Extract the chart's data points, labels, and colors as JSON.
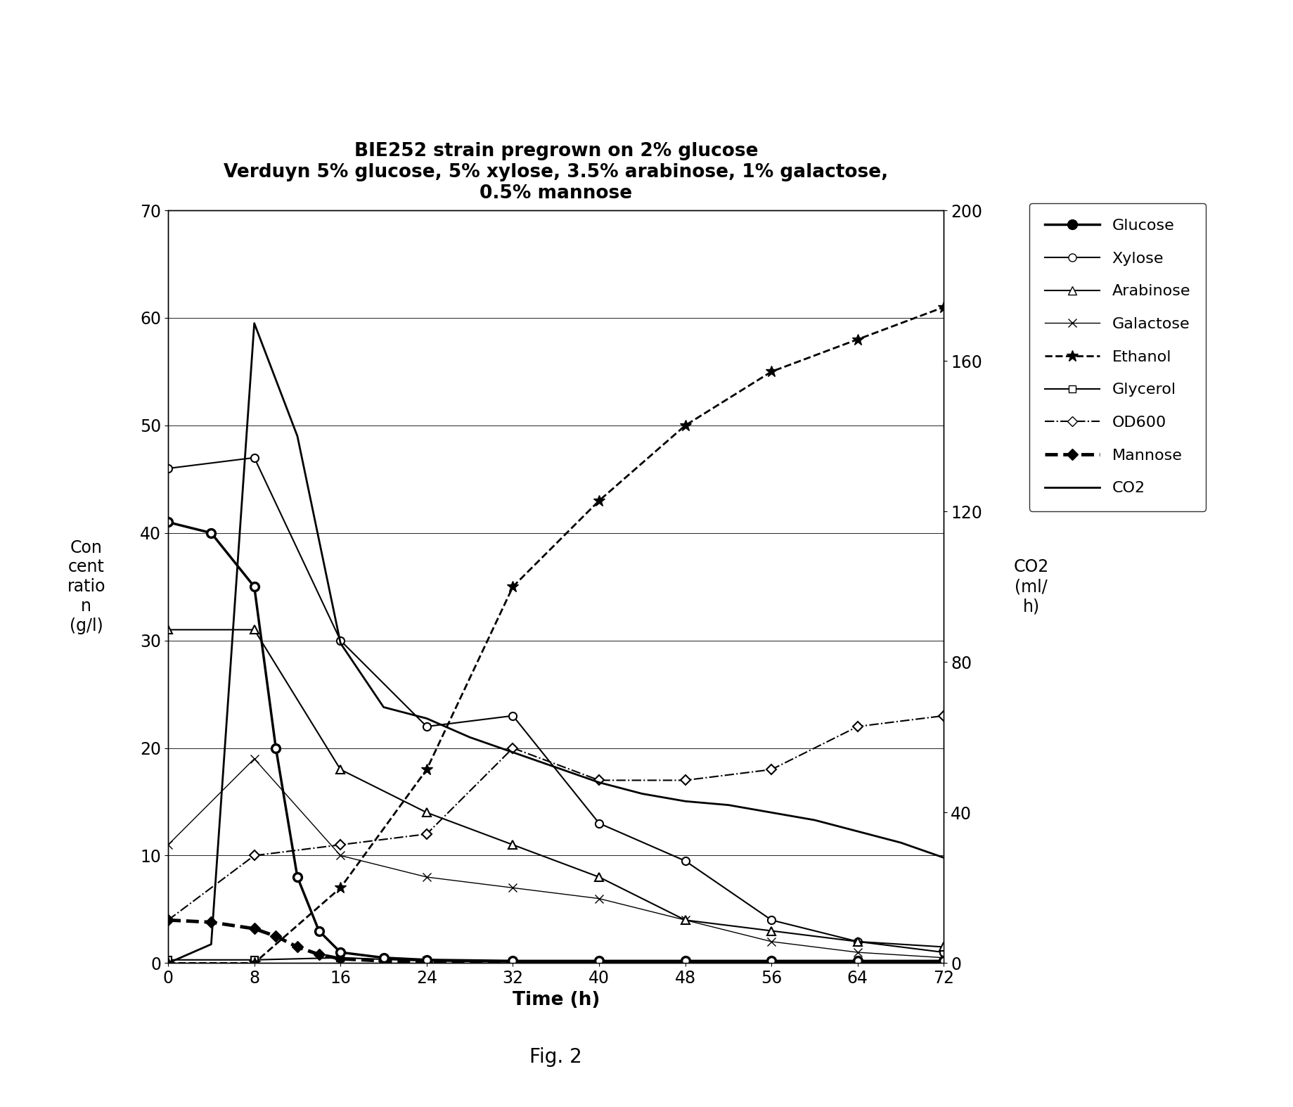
{
  "title_line1": "BIE252 strain pregrown on 2% glucose",
  "title_line2": "Verduyn 5% glucose, 5% xylose, 3.5% arabinose, 1% galactose,",
  "title_line3": "0.5% mannose",
  "xlabel": "Time (h)",
  "ylabel_left": "Con\ncent\nratio\nn\n(g/l)",
  "ylabel_right": "CO2\n(ml/\nh)",
  "figcaption": "Fig. 2",
  "xlim": [
    0,
    72
  ],
  "ylim_left": [
    0,
    70
  ],
  "ylim_right": [
    0,
    200
  ],
  "xticks": [
    0,
    8,
    16,
    24,
    32,
    40,
    48,
    56,
    64,
    72
  ],
  "yticks_left": [
    0,
    10,
    20,
    30,
    40,
    50,
    60,
    70
  ],
  "yticks_right": [
    0,
    40,
    80,
    120,
    160,
    200
  ],
  "glucose": {
    "x": [
      0,
      4,
      8,
      10,
      12,
      14,
      16,
      20,
      24,
      32,
      40,
      48,
      56,
      64,
      72
    ],
    "y": [
      41,
      40,
      35,
      20,
      8,
      3,
      1,
      0.5,
      0.3,
      0.2,
      0.2,
      0.2,
      0.2,
      0.2,
      0.2
    ],
    "label": "Glucose",
    "linestyle": "-",
    "linewidth": 2.5,
    "marker": "o",
    "markersize": 7,
    "color": "#000000",
    "zorder": 5
  },
  "xylose": {
    "x": [
      0,
      8,
      16,
      24,
      32,
      40,
      48,
      56,
      64,
      72
    ],
    "y": [
      46,
      47,
      30,
      22,
      23,
      13,
      9.5,
      4,
      2,
      1
    ],
    "label": "Xylose",
    "linestyle": "-",
    "linewidth": 1.5,
    "marker": "o",
    "markersize": 8,
    "color": "#000000",
    "zorder": 4
  },
  "arabinose": {
    "x": [
      0,
      8,
      16,
      24,
      32,
      40,
      48,
      56,
      64,
      72
    ],
    "y": [
      31,
      31,
      18,
      14,
      11,
      8,
      4,
      3,
      2,
      1.5
    ],
    "label": "Arabinose",
    "linestyle": "-",
    "linewidth": 1.5,
    "marker": "^",
    "markersize": 8,
    "color": "#000000",
    "zorder": 4
  },
  "galactose": {
    "x": [
      0,
      8,
      16,
      24,
      32,
      40,
      48,
      56,
      64,
      72
    ],
    "y": [
      11,
      19,
      10,
      8,
      7,
      6,
      4,
      2,
      1,
      0.5
    ],
    "label": "Galactose",
    "linestyle": "-",
    "linewidth": 1.0,
    "marker": "x",
    "markersize": 9,
    "color": "#000000",
    "zorder": 3
  },
  "ethanol": {
    "x": [
      0,
      8,
      16,
      24,
      32,
      40,
      48,
      56,
      64,
      72
    ],
    "y": [
      0,
      0,
      7,
      18,
      35,
      43,
      50,
      55,
      58,
      61
    ],
    "label": "Ethanol",
    "linestyle": "--",
    "linewidth": 2.0,
    "marker": "*",
    "markersize": 12,
    "color": "#000000",
    "zorder": 3
  },
  "glycerol": {
    "x": [
      0,
      8,
      16,
      24,
      32,
      40,
      48,
      56,
      64,
      72
    ],
    "y": [
      0.3,
      0.3,
      0.5,
      0.2,
      0.1,
      0.1,
      0.1,
      0.1,
      0.1,
      0.1
    ],
    "label": "Glycerol",
    "linestyle": "-",
    "linewidth": 1.5,
    "marker": "s",
    "markersize": 7,
    "color": "#000000",
    "zorder": 2
  },
  "od600": {
    "x": [
      0,
      8,
      16,
      24,
      32,
      40,
      48,
      56,
      64,
      72
    ],
    "y": [
      4,
      10,
      11,
      12,
      20,
      17,
      17,
      18,
      22,
      23
    ],
    "label": "OD600",
    "linestyle": "-.",
    "linewidth": 1.5,
    "marker": "D",
    "markersize": 7,
    "color": "#000000",
    "zorder": 2
  },
  "mannose": {
    "x": [
      0,
      4,
      8,
      10,
      12,
      14,
      16,
      20,
      24,
      32,
      40,
      48,
      56,
      64,
      72
    ],
    "y": [
      4,
      3.8,
      3.2,
      2.5,
      1.5,
      0.8,
      0.4,
      0.2,
      0.1,
      0.1,
      0.1,
      0.1,
      0.1,
      0.1,
      0.1
    ],
    "label": "Mannose",
    "linestyle": "--",
    "linewidth": 3.5,
    "marker": "D",
    "markersize": 8,
    "color": "#000000",
    "zorder": 5
  },
  "co2": {
    "x": [
      0,
      4,
      8,
      12,
      16,
      20,
      24,
      28,
      32,
      36,
      40,
      44,
      48,
      52,
      56,
      60,
      64,
      68,
      72
    ],
    "y_right": [
      0,
      5,
      170,
      140,
      85,
      68,
      65,
      60,
      56,
      52,
      48,
      45,
      43,
      42,
      40,
      38,
      35,
      32,
      28
    ],
    "label": "CO2",
    "linestyle": "-",
    "linewidth": 2.0,
    "marker": "None",
    "color": "#000000",
    "zorder": 6
  }
}
